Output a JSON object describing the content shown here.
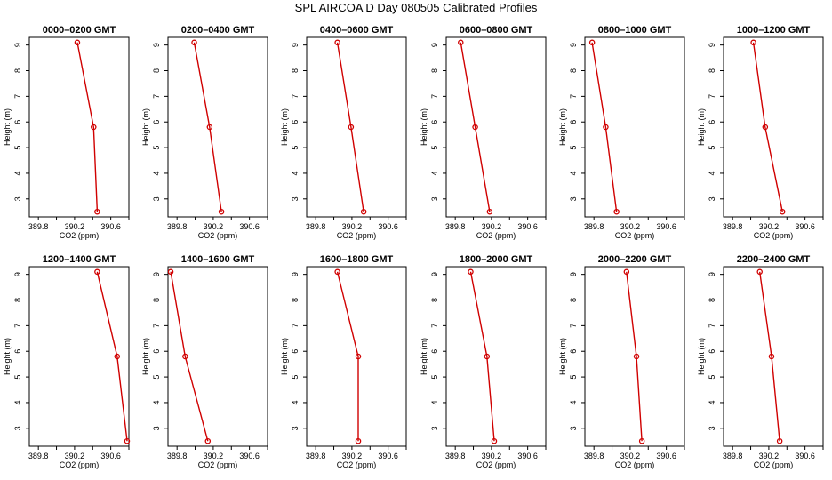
{
  "figure": {
    "title": "SPL AIRCOA D  Day 080505  Calibrated Profiles"
  },
  "colors": {
    "series": "#d00000",
    "axes": "#000000",
    "background": "#ffffff"
  },
  "chart_data": [
    {
      "type": "line",
      "title": "0000–0200 GMT",
      "xlabel": "CO2 (ppm)",
      "ylabel": "Height (m)",
      "xlim": [
        389.7,
        390.8
      ],
      "ylim": [
        2.3,
        9.3
      ],
      "xticks": [
        "389.8",
        "390.2",
        "390.6"
      ],
      "yticks": [
        "3",
        "4",
        "5",
        "6",
        "7",
        "8",
        "9"
      ],
      "series": [
        {
          "x": [
            390.23,
            390.41,
            390.45
          ],
          "y": [
            9.1,
            5.8,
            2.5
          ]
        }
      ]
    },
    {
      "type": "line",
      "title": "0200–0400 GMT",
      "xlabel": "CO2 (ppm)",
      "ylabel": "Height (m)",
      "xlim": [
        389.7,
        390.8
      ],
      "ylim": [
        2.3,
        9.3
      ],
      "xticks": [
        "389.8",
        "390.2",
        "390.6"
      ],
      "yticks": [
        "3",
        "4",
        "5",
        "6",
        "7",
        "8",
        "9"
      ],
      "series": [
        {
          "x": [
            389.99,
            390.16,
            390.29
          ],
          "y": [
            9.1,
            5.8,
            2.5
          ]
        }
      ]
    },
    {
      "type": "line",
      "title": "0400–0600 GMT",
      "xlabel": "CO2 (ppm)",
      "ylabel": "Height (m)",
      "xlim": [
        389.7,
        390.8
      ],
      "ylim": [
        2.3,
        9.3
      ],
      "xticks": [
        "389.8",
        "390.2",
        "390.6"
      ],
      "yticks": [
        "3",
        "4",
        "5",
        "6",
        "7",
        "8",
        "9"
      ],
      "series": [
        {
          "x": [
            390.04,
            390.19,
            390.33
          ],
          "y": [
            9.1,
            5.8,
            2.5
          ]
        }
      ]
    },
    {
      "type": "line",
      "title": "0600–0800 GMT",
      "xlabel": "CO2 (ppm)",
      "ylabel": "Height (m)",
      "xlim": [
        389.7,
        390.8
      ],
      "ylim": [
        2.3,
        9.3
      ],
      "xticks": [
        "389.8",
        "390.2",
        "390.6"
      ],
      "yticks": [
        "3",
        "4",
        "5",
        "6",
        "7",
        "8",
        "9"
      ],
      "series": [
        {
          "x": [
            389.86,
            390.02,
            390.18
          ],
          "y": [
            9.1,
            5.8,
            2.5
          ]
        }
      ]
    },
    {
      "type": "line",
      "title": "0800–1000 GMT",
      "xlabel": "CO2 (ppm)",
      "ylabel": "Height (m)",
      "xlim": [
        389.7,
        390.8
      ],
      "ylim": [
        2.3,
        9.3
      ],
      "xticks": [
        "389.8",
        "390.2",
        "390.6"
      ],
      "yticks": [
        "3",
        "4",
        "5",
        "6",
        "7",
        "8",
        "9"
      ],
      "series": [
        {
          "x": [
            389.78,
            389.93,
            390.05
          ],
          "y": [
            9.1,
            5.8,
            2.5
          ]
        }
      ]
    },
    {
      "type": "line",
      "title": "1000–1200 GMT",
      "xlabel": "CO2 (ppm)",
      "ylabel": "Height (m)",
      "xlim": [
        389.7,
        390.8
      ],
      "ylim": [
        2.3,
        9.3
      ],
      "xticks": [
        "389.8",
        "390.2",
        "390.6"
      ],
      "yticks": [
        "3",
        "4",
        "5",
        "6",
        "7",
        "8",
        "9"
      ],
      "series": [
        {
          "x": [
            390.03,
            390.16,
            390.35
          ],
          "y": [
            9.1,
            5.8,
            2.5
          ]
        }
      ]
    },
    {
      "type": "line",
      "title": "1200–1400 GMT",
      "xlabel": "CO2 (ppm)",
      "ylabel": "Height (m)",
      "xlim": [
        389.7,
        390.8
      ],
      "ylim": [
        2.3,
        9.3
      ],
      "xticks": [
        "389.8",
        "390.2",
        "390.6"
      ],
      "yticks": [
        "3",
        "4",
        "5",
        "6",
        "7",
        "8",
        "9"
      ],
      "series": [
        {
          "x": [
            390.45,
            390.67,
            390.78
          ],
          "y": [
            9.1,
            5.8,
            2.5
          ]
        }
      ]
    },
    {
      "type": "line",
      "title": "1400–1600 GMT",
      "xlabel": "CO2 (ppm)",
      "ylabel": "Height (m)",
      "xlim": [
        389.7,
        390.8
      ],
      "ylim": [
        2.3,
        9.3
      ],
      "xticks": [
        "389.8",
        "390.2",
        "390.6"
      ],
      "yticks": [
        "3",
        "4",
        "5",
        "6",
        "7",
        "8",
        "9"
      ],
      "series": [
        {
          "x": [
            389.73,
            389.89,
            390.14
          ],
          "y": [
            9.1,
            5.8,
            2.5
          ]
        }
      ]
    },
    {
      "type": "line",
      "title": "1600–1800 GMT",
      "xlabel": "CO2 (ppm)",
      "ylabel": "Height (m)",
      "xlim": [
        389.7,
        390.8
      ],
      "ylim": [
        2.3,
        9.3
      ],
      "xticks": [
        "389.8",
        "390.2",
        "390.6"
      ],
      "yticks": [
        "3",
        "4",
        "5",
        "6",
        "7",
        "8",
        "9"
      ],
      "series": [
        {
          "x": [
            390.04,
            390.27,
            390.27
          ],
          "y": [
            9.1,
            5.8,
            2.5
          ]
        }
      ]
    },
    {
      "type": "line",
      "title": "1800–2000 GMT",
      "xlabel": "CO2 (ppm)",
      "ylabel": "Height (m)",
      "xlim": [
        389.7,
        390.8
      ],
      "ylim": [
        2.3,
        9.3
      ],
      "xticks": [
        "389.8",
        "390.2",
        "390.6"
      ],
      "yticks": [
        "3",
        "4",
        "5",
        "6",
        "7",
        "8",
        "9"
      ],
      "series": [
        {
          "x": [
            389.97,
            390.15,
            390.23
          ],
          "y": [
            9.1,
            5.8,
            2.5
          ]
        }
      ]
    },
    {
      "type": "line",
      "title": "2000–2200 GMT",
      "xlabel": "CO2 (ppm)",
      "ylabel": "Height (m)",
      "xlim": [
        389.7,
        390.8
      ],
      "ylim": [
        2.3,
        9.3
      ],
      "xticks": [
        "389.8",
        "390.2",
        "390.6"
      ],
      "yticks": [
        "3",
        "4",
        "5",
        "6",
        "7",
        "8",
        "9"
      ],
      "series": [
        {
          "x": [
            390.16,
            390.27,
            390.33
          ],
          "y": [
            9.1,
            5.8,
            2.5
          ]
        }
      ]
    },
    {
      "type": "line",
      "title": "2200–2400 GMT",
      "xlabel": "CO2 (ppm)",
      "ylabel": "Height (m)",
      "xlim": [
        389.7,
        390.8
      ],
      "ylim": [
        2.3,
        9.3
      ],
      "xticks": [
        "389.8",
        "390.2",
        "390.6"
      ],
      "yticks": [
        "3",
        "4",
        "5",
        "6",
        "7",
        "8",
        "9"
      ],
      "series": [
        {
          "x": [
            390.1,
            390.23,
            390.32
          ],
          "y": [
            9.1,
            5.8,
            2.5
          ]
        }
      ]
    }
  ]
}
